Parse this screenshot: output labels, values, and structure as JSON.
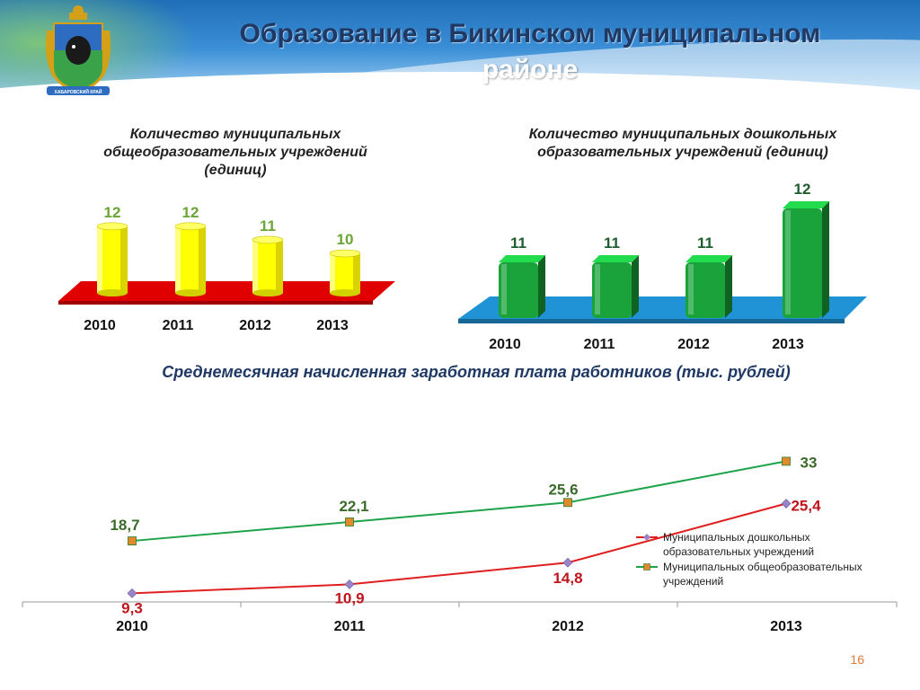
{
  "slide": {
    "title_line1": "Образование в Бикинском муниципальном",
    "title_line2": "районе",
    "page_number": "16",
    "emblem_label": "ХАБАРОВСКИЙ КРАЙ",
    "section_title": "Среднемесячная начисленная заработная плата работников (тыс. рублей)"
  },
  "chart_data": [
    {
      "type": "bar",
      "title_lines": [
        "Количество муниципальных",
        "общеобразовательных учреждений",
        "(единиц)"
      ],
      "categories": [
        "2010",
        "2011",
        "2012",
        "2013"
      ],
      "values": [
        12,
        12,
        11,
        10
      ],
      "value_labels": [
        "12",
        "12",
        "11",
        "10"
      ],
      "bar_color": "#ffff00",
      "floor_color": "#e00000",
      "label_color": "#6aa535"
    },
    {
      "type": "bar",
      "title_lines": [
        "Количество муниципальных дошкольных",
        "образовательных учреждений (единиц)"
      ],
      "categories": [
        "2010",
        "2011",
        "2012",
        "2013"
      ],
      "values": [
        11,
        11,
        11,
        12
      ],
      "value_labels": [
        "11",
        "11",
        "11",
        "12"
      ],
      "bar_color": "#1aa33a",
      "floor_color": "#1f93d6",
      "label_color": "#1e5e2e"
    },
    {
      "type": "line",
      "categories": [
        "2010",
        "2011",
        "2012",
        "2013"
      ],
      "ylim": [
        0,
        35
      ],
      "series": [
        {
          "name": "Муниципальных дошкольных образовательных учреждений",
          "name_lines": [
            "Муниципальных  дошкольных",
            "образовательных  учреждений"
          ],
          "values": [
            9.3,
            10.9,
            14.8,
            25.4
          ],
          "value_labels": [
            "9,3",
            "10,9",
            "14,8",
            "25,4"
          ],
          "color": "#e02020",
          "marker": "diamond",
          "marker_color": "#9a84c9",
          "label_color": "#c0141c"
        },
        {
          "name": "Муниципальных общеобразовательных учреждений",
          "name_lines": [
            "Муниципальных  общеобразовательных",
            "учреждений"
          ],
          "values": [
            18.7,
            22.1,
            25.6,
            33
          ],
          "value_labels": [
            "18,7",
            "22,1",
            "25,6",
            "33"
          ],
          "color": "#1fa34a",
          "marker": "square",
          "marker_color": "#e08a2a",
          "label_color": "#3b6b2a"
        }
      ],
      "legend_position": "right"
    }
  ]
}
